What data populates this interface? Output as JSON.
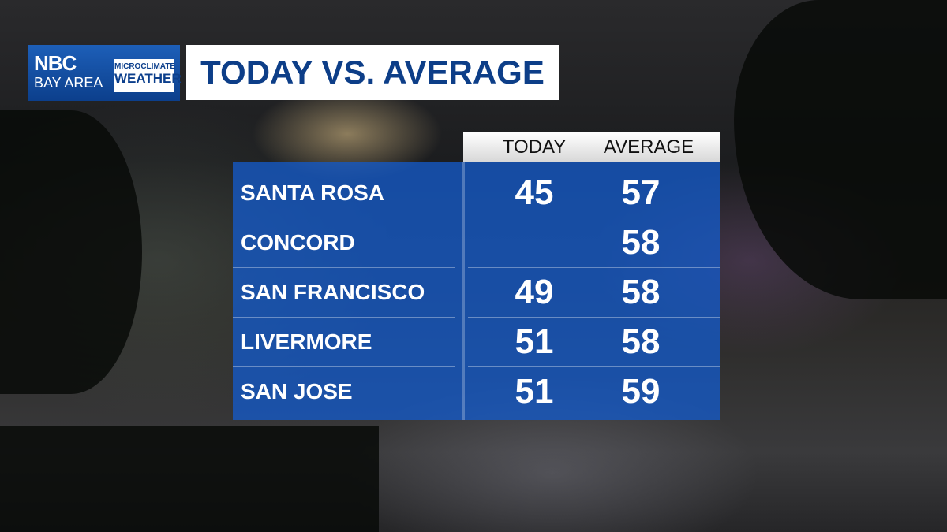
{
  "logo": {
    "network": "NBC",
    "region": "BAY AREA",
    "line1": "MICROCLIMATE",
    "line2": "WEATHER"
  },
  "title": "TODAY VS. AVERAGE",
  "table": {
    "columns": [
      "TODAY",
      "AVERAGE"
    ],
    "rows": [
      {
        "city": "SANTA ROSA",
        "today": 45,
        "average": 57
      },
      {
        "city": "CONCORD",
        "today": null,
        "average": 58
      },
      {
        "city": "SAN FRANCISCO",
        "today": 49,
        "average": 58
      },
      {
        "city": "LIVERMORE",
        "today": 51,
        "average": 58
      },
      {
        "city": "SAN JOSE",
        "today": 51,
        "average": 59
      }
    ]
  }
}
